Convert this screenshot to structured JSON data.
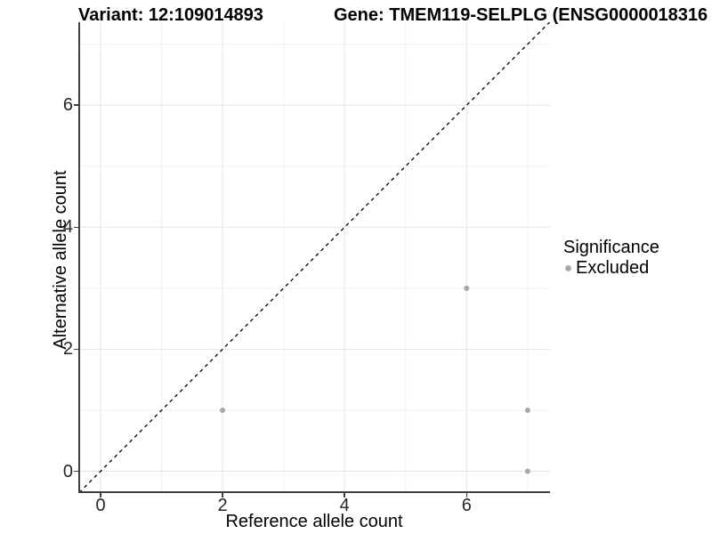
{
  "titles": {
    "variant": "Variant: 12:109014893",
    "gene": "Gene: TMEM119-SELPLG (ENSG0000018316"
  },
  "legend": {
    "title": "Significance",
    "items": [
      {
        "label": "Excluded",
        "color": "#a8a8a8"
      }
    ]
  },
  "colors": {
    "background": "#ffffff",
    "grid_major": "#e5e5e5",
    "grid_minor": "#f0f0f0",
    "axis": "#3f3f3f",
    "point": "#a8a8a8",
    "reference_line": "#000000",
    "text": "#000000"
  },
  "chart_data": {
    "type": "scatter",
    "title": "Variant: 12:109014893   Gene: TMEM119-SELPLG (ENSG0000018316",
    "xlabel": "Reference allele count",
    "ylabel": "Alternative allele count",
    "series": [
      {
        "name": "Excluded",
        "color": "#a8a8a8",
        "points": [
          [
            2,
            1
          ],
          [
            6,
            3
          ],
          [
            7,
            1
          ],
          [
            7,
            0
          ]
        ]
      }
    ],
    "reference_line": {
      "type": "identity",
      "slope": 1,
      "intercept": 0,
      "style": "dashed",
      "color": "#000000"
    },
    "xlim": [
      -0.35,
      7.36
    ],
    "ylim": [
      -0.35,
      7.36
    ],
    "x_major_ticks": [
      0,
      2,
      4,
      6
    ],
    "y_major_ticks": [
      0,
      2,
      4,
      6
    ],
    "x_minor_ticks": [
      1,
      3,
      5,
      7
    ],
    "y_minor_ticks": [
      1,
      3,
      5,
      7
    ],
    "grid": true,
    "legend_position": "right",
    "legend_title": "Significance"
  }
}
